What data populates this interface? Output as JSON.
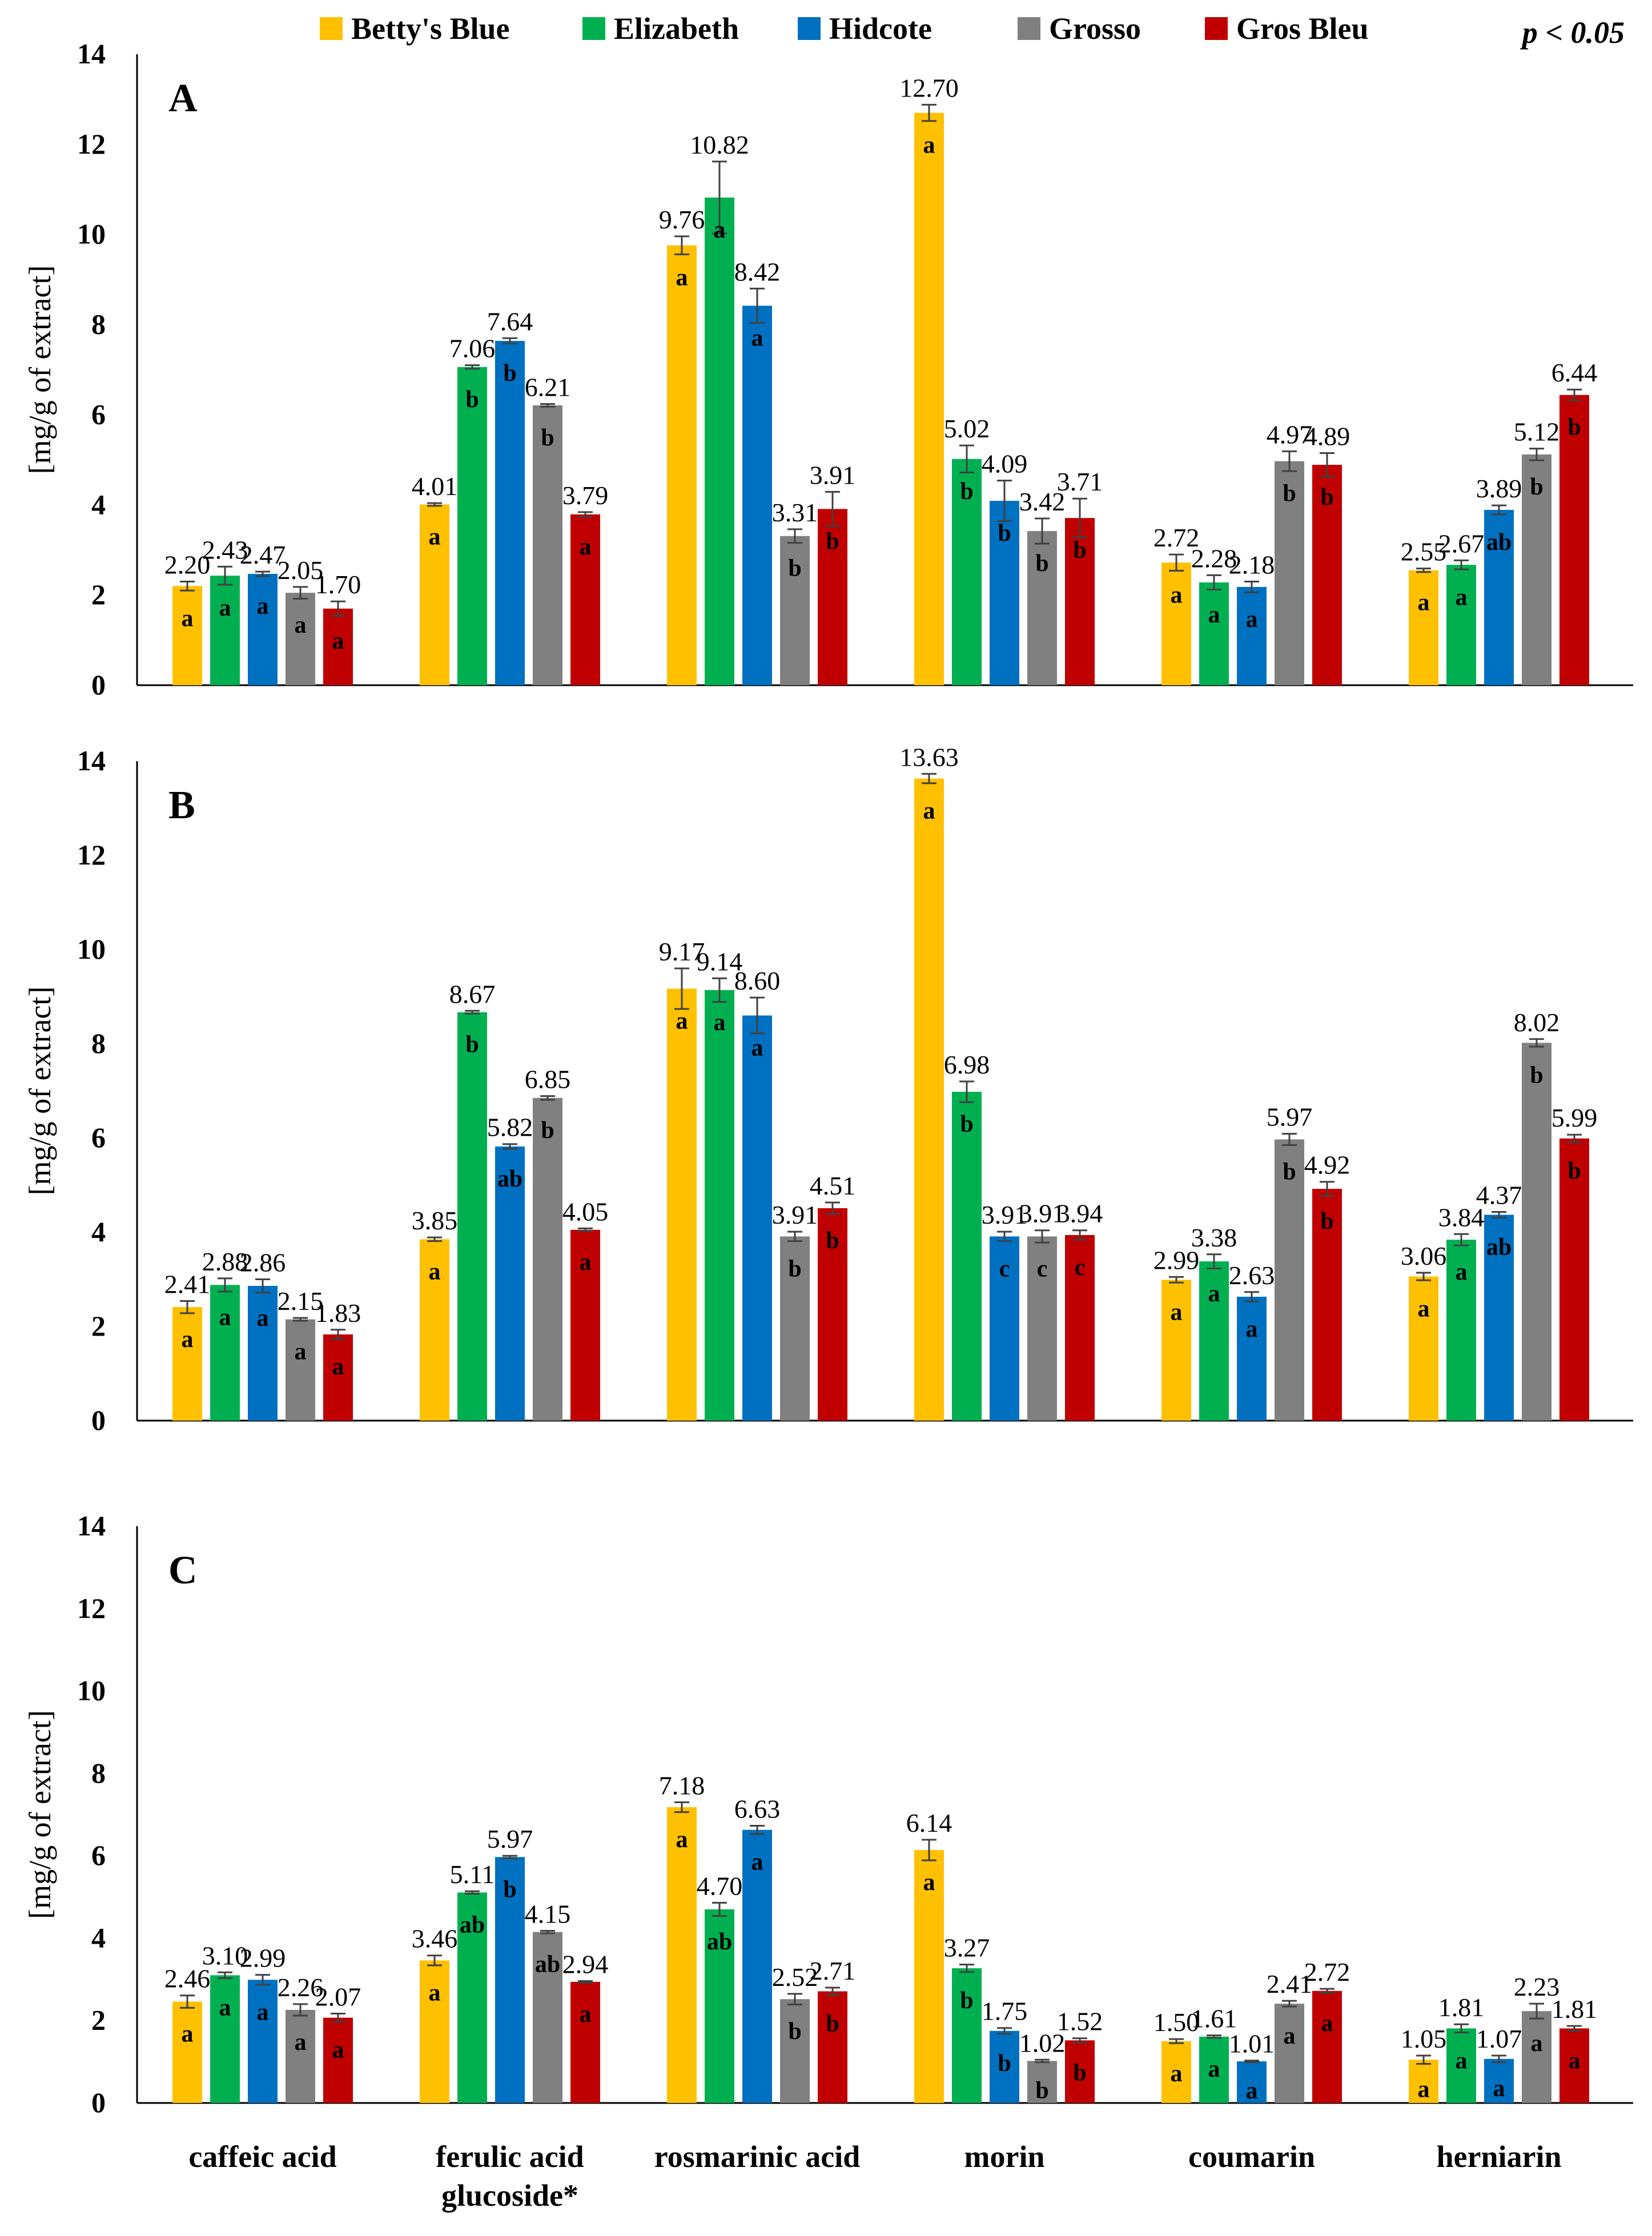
{
  "legend": {
    "entries": [
      "Betty's Blue",
      "Elizabeth",
      "Hidcote",
      "Grosso",
      "Gros Bleu"
    ],
    "significance": "p < 0.05"
  },
  "colors": [
    "#FFC000",
    "#00B050",
    "#0070C0",
    "#808080",
    "#C00000"
  ],
  "y_axis_label": "[mg/g of extract]",
  "category_labels": [
    [
      "caffeic acid"
    ],
    [
      "ferulic acid",
      "glucoside*"
    ],
    [
      "rosmarinic acid"
    ],
    [
      "morin"
    ],
    [
      "coumarin"
    ],
    [
      "herniarin"
    ]
  ],
  "chart_data": [
    {
      "type": "bar",
      "panel": "A",
      "ylim": [
        0,
        14
      ],
      "yticks": [
        0,
        2,
        4,
        6,
        8,
        10,
        12,
        14
      ],
      "categories": [
        "caffeic acid",
        "ferulic acid glucoside*",
        "rosmarinic acid",
        "morin",
        "coumarin",
        "herniarin"
      ],
      "series": [
        {
          "name": "Betty's Blue",
          "values": [
            2.2,
            4.01,
            9.76,
            12.7,
            2.72,
            2.55
          ],
          "labels": [
            "2.20",
            "4.01",
            "9.76",
            "12.70",
            "2.72",
            "2.55"
          ],
          "errors": [
            0.1,
            0.03,
            0.2,
            0.18,
            0.18,
            0.04
          ],
          "letters": [
            "a",
            "a",
            "a",
            "a",
            "a",
            "a"
          ]
        },
        {
          "name": "Elizabeth",
          "values": [
            2.43,
            7.06,
            10.82,
            5.02,
            2.28,
            2.67
          ],
          "labels": [
            "2.43",
            "7.06",
            "10.82",
            "5.02",
            "2.28",
            "2.67"
          ],
          "errors": [
            0.2,
            0.04,
            0.8,
            0.3,
            0.16,
            0.1
          ],
          "letters": [
            "a",
            "b",
            "a",
            "b",
            "a",
            "a"
          ]
        },
        {
          "name": "Hidcote",
          "values": [
            2.47,
            7.64,
            8.42,
            4.09,
            2.18,
            3.89
          ],
          "labels": [
            "2.47",
            "7.64",
            "8.42",
            "4.09",
            "2.18",
            "3.89"
          ],
          "errors": [
            0.05,
            0.06,
            0.38,
            0.45,
            0.12,
            0.1
          ],
          "letters": [
            "a",
            "b",
            "a",
            "b",
            "a",
            "ab"
          ]
        },
        {
          "name": "Grosso",
          "values": [
            2.05,
            6.21,
            3.31,
            3.42,
            4.97,
            5.12
          ],
          "labels": [
            "2.05",
            "6.21",
            "3.31",
            "3.42",
            "4.97",
            "5.12"
          ],
          "errors": [
            0.13,
            0.03,
            0.15,
            0.28,
            0.22,
            0.13
          ],
          "letters": [
            "a",
            "b",
            "b",
            "b",
            "b",
            "b"
          ]
        },
        {
          "name": "Gros Bleu",
          "values": [
            1.7,
            3.79,
            3.91,
            3.71,
            4.89,
            6.44
          ],
          "labels": [
            "1.70",
            "3.79",
            "3.91",
            "3.71",
            "4.89",
            "6.44"
          ],
          "errors": [
            0.16,
            0.05,
            0.38,
            0.43,
            0.26,
            0.12
          ],
          "letters": [
            "a",
            "a",
            "b",
            "b",
            "b",
            "b"
          ]
        }
      ]
    },
    {
      "type": "bar",
      "panel": "B",
      "ylim": [
        0,
        14
      ],
      "yticks": [
        0,
        2,
        4,
        6,
        8,
        10,
        12,
        14
      ],
      "categories": [
        "caffeic acid",
        "ferulic acid glucoside*",
        "rosmarinic acid",
        "morin",
        "coumarin",
        "herniarin"
      ],
      "series": [
        {
          "name": "Betty's Blue",
          "values": [
            2.41,
            3.85,
            9.17,
            13.63,
            2.99,
            3.06
          ],
          "labels": [
            "2.41",
            "3.85",
            "9.17",
            "13.63",
            "2.99",
            "3.06"
          ],
          "errors": [
            0.13,
            0.04,
            0.43,
            0.1,
            0.06,
            0.08
          ],
          "letters": [
            "a",
            "a",
            "a",
            "a",
            "a",
            "a"
          ]
        },
        {
          "name": "Elizabeth",
          "values": [
            2.88,
            8.67,
            9.14,
            6.98,
            3.38,
            3.84
          ],
          "labels": [
            "2.88",
            "8.67",
            "9.14",
            "6.98",
            "3.38",
            "3.84"
          ],
          "errors": [
            0.14,
            0.03,
            0.25,
            0.22,
            0.15,
            0.12
          ],
          "letters": [
            "a",
            "b",
            "a",
            "b",
            "a",
            "a"
          ]
        },
        {
          "name": "Hidcote",
          "values": [
            2.86,
            5.82,
            8.6,
            3.91,
            2.63,
            4.37
          ],
          "labels": [
            "2.86",
            "5.82",
            "8.60",
            "3.91",
            "2.63",
            "4.37"
          ],
          "errors": [
            0.14,
            0.05,
            0.38,
            0.1,
            0.1,
            0.06
          ],
          "letters": [
            "a",
            "ab",
            "a",
            "c",
            "a",
            "ab"
          ]
        },
        {
          "name": "Grosso",
          "values": [
            2.15,
            6.85,
            3.91,
            3.91,
            5.97,
            8.02
          ],
          "labels": [
            "2.15",
            "6.85",
            "3.91",
            "3.91",
            "5.97",
            "8.02"
          ],
          "errors": [
            0.03,
            0.04,
            0.1,
            0.13,
            0.12,
            0.08
          ],
          "letters": [
            "a",
            "b",
            "b",
            "c",
            "b",
            "b"
          ]
        },
        {
          "name": "Gros Bleu",
          "values": [
            1.83,
            4.05,
            4.51,
            3.94,
            4.92,
            5.99
          ],
          "labels": [
            "1.83",
            "4.05",
            "4.51",
            "3.94",
            "4.92",
            "5.99"
          ],
          "errors": [
            0.1,
            0.03,
            0.12,
            0.1,
            0.15,
            0.08
          ],
          "letters": [
            "a",
            "a",
            "b",
            "c",
            "b",
            "b"
          ]
        }
      ]
    },
    {
      "type": "bar",
      "panel": "C",
      "ylim": [
        0,
        14
      ],
      "yticks": [
        0,
        2,
        4,
        6,
        8,
        10,
        12,
        14
      ],
      "categories": [
        "caffeic acid",
        "ferulic acid glucoside*",
        "rosmarinic acid",
        "morin",
        "coumarin",
        "herniarin"
      ],
      "series": [
        {
          "name": "Betty's Blue",
          "values": [
            2.46,
            3.46,
            7.18,
            6.14,
            1.5,
            1.05
          ],
          "labels": [
            "2.46",
            "3.46",
            "7.18",
            "6.14",
            "1.50",
            "1.05"
          ],
          "errors": [
            0.15,
            0.12,
            0.12,
            0.25,
            0.05,
            0.1
          ],
          "letters": [
            "a",
            "a",
            "a",
            "a",
            "a",
            "a"
          ]
        },
        {
          "name": "Elizabeth",
          "values": [
            3.1,
            5.11,
            4.7,
            3.27,
            1.61,
            1.81
          ],
          "labels": [
            "3.10",
            "5.11",
            "4.70",
            "3.27",
            "1.61",
            "1.81"
          ],
          "errors": [
            0.07,
            0.03,
            0.16,
            0.09,
            0.03,
            0.1
          ],
          "letters": [
            "a",
            "ab",
            "ab",
            "b",
            "a",
            "a"
          ]
        },
        {
          "name": "Hidcote",
          "values": [
            2.99,
            5.97,
            6.63,
            1.75,
            1.01,
            1.07
          ],
          "labels": [
            "2.99",
            "5.97",
            "6.63",
            "1.75",
            "1.01",
            "1.07"
          ],
          "errors": [
            0.12,
            0.03,
            0.1,
            0.07,
            0.02,
            0.08
          ],
          "letters": [
            "a",
            "b",
            "a",
            "b",
            "a",
            "a"
          ]
        },
        {
          "name": "Grosso",
          "values": [
            2.26,
            4.15,
            2.52,
            1.02,
            2.41,
            2.23
          ],
          "labels": [
            "2.26",
            "4.15",
            "2.52",
            "1.02",
            "2.41",
            "2.23"
          ],
          "errors": [
            0.14,
            0.03,
            0.13,
            0.03,
            0.07,
            0.18
          ],
          "letters": [
            "a",
            "ab",
            "b",
            "b",
            "a",
            "a"
          ]
        },
        {
          "name": "Gros Bleu",
          "values": [
            2.07,
            2.94,
            2.71,
            1.52,
            2.72,
            1.81
          ],
          "labels": [
            "2.07",
            "2.94",
            "2.71",
            "1.52",
            "2.72",
            "1.81"
          ],
          "errors": [
            0.1,
            0.02,
            0.09,
            0.05,
            0.05,
            0.06
          ],
          "letters": [
            "a",
            "a",
            "b",
            "b",
            "a",
            "a"
          ]
        }
      ]
    }
  ]
}
